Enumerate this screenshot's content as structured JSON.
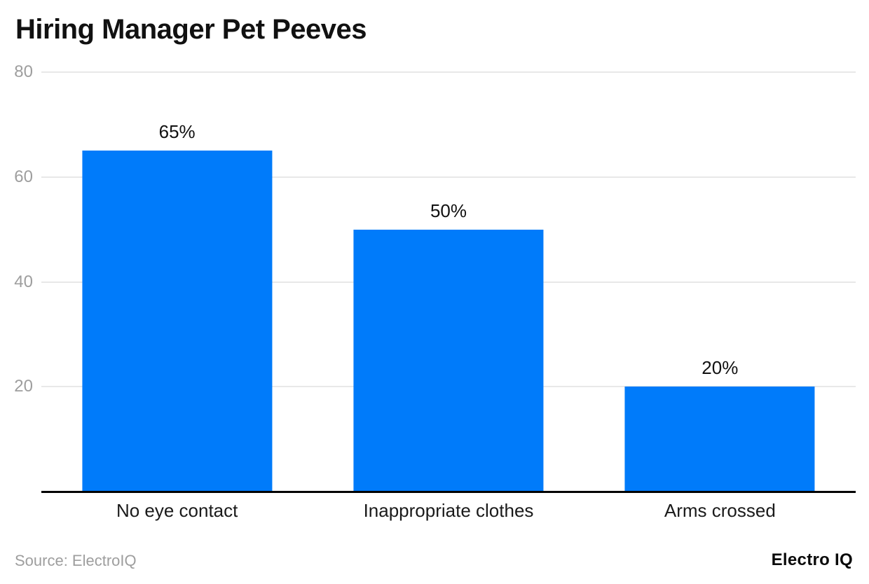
{
  "title": "Hiring Manager Pet Peeves",
  "source_note": "Source: ElectroIQ",
  "brand_logo": "Electro IQ",
  "chart_data": {
    "type": "bar",
    "title": "Hiring Manager Pet Peeves",
    "categories": [
      "No eye contact",
      "Inappropriate clothes",
      "Arms crossed"
    ],
    "values": [
      65,
      50,
      20
    ],
    "value_labels": [
      "65%",
      "50%",
      "20%"
    ],
    "xlabel": "",
    "ylabel": "",
    "ylim": [
      0,
      80
    ],
    "yticks": [
      20,
      40,
      60,
      80
    ],
    "grid": "horizontal gridlines at yticks, no vertical grid",
    "legend": "none",
    "bar_band_fraction": 0.7,
    "colors": {
      "bar": "#007bfa",
      "gridline": "#e8e8e8",
      "axis_line": "#000000",
      "tick_label": "#9e9e9e",
      "value_label": "#111111",
      "category_label": "#1a1a1a",
      "source_text": "#9e9e9e",
      "brand_text": "#0a0a0a",
      "background": "#ffffff"
    }
  }
}
